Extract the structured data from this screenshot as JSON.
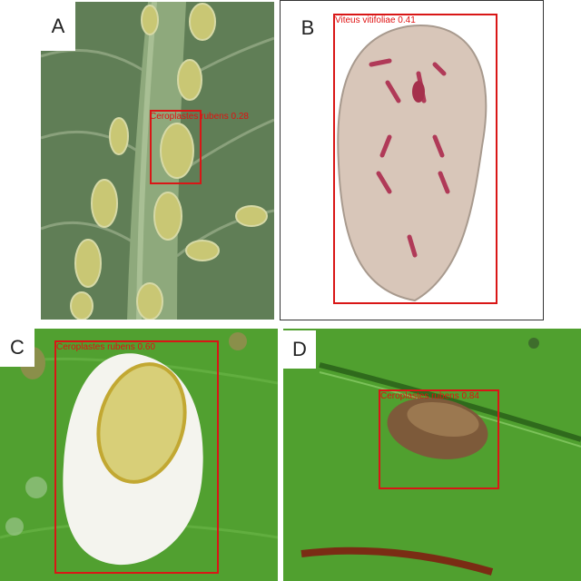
{
  "panels": [
    {
      "letter": "A",
      "detection": {
        "species": "Ceroplastes rubens",
        "score": "0.28",
        "label": "Ceroplastes rubens 0.28"
      }
    },
    {
      "letter": "B",
      "detection": {
        "species": "Viteus vitifoliae",
        "score": "0.41",
        "label": "Viteus vitifoliae 0.41"
      }
    },
    {
      "letter": "C",
      "detection": {
        "species": "Ceroplastes rubens",
        "score": "0.60",
        "label": "Ceroplastes rubens 0.60"
      }
    },
    {
      "letter": "D",
      "detection": {
        "species": "Ceroplastes rubens",
        "score": "0.84",
        "label": "Ceroplastes rubens 0.84"
      }
    }
  ],
  "colors": {
    "box": "#d91616",
    "label_text": "#e01010"
  }
}
